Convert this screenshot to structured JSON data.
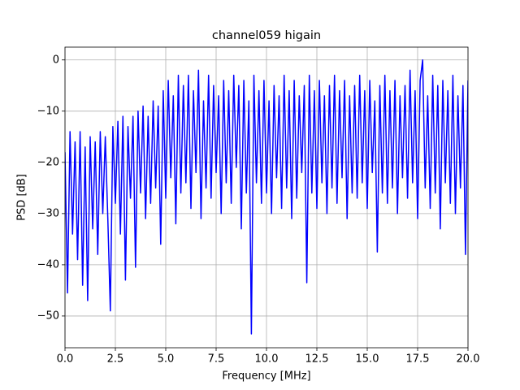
{
  "chart_data": {
    "type": "line",
    "title": "channel059 higain",
    "xlabel": "Frequency [MHz]",
    "ylabel": "PSD [dB]",
    "x": [
      0,
      0.125,
      0.25,
      0.375,
      0.5,
      0.625,
      0.75,
      0.875,
      1,
      1.125,
      1.25,
      1.375,
      1.5,
      1.625,
      1.75,
      1.875,
      2,
      2.125,
      2.25,
      2.375,
      2.5,
      2.625,
      2.75,
      2.875,
      3,
      3.125,
      3.25,
      3.375,
      3.5,
      3.625,
      3.75,
      3.875,
      4,
      4.125,
      4.25,
      4.375,
      4.5,
      4.625,
      4.75,
      4.875,
      5,
      5.125,
      5.25,
      5.375,
      5.5,
      5.625,
      5.75,
      5.875,
      6,
      6.125,
      6.25,
      6.375,
      6.5,
      6.625,
      6.75,
      6.875,
      7,
      7.125,
      7.25,
      7.375,
      7.5,
      7.625,
      7.75,
      7.875,
      8,
      8.125,
      8.25,
      8.375,
      8.5,
      8.625,
      8.75,
      8.875,
      9,
      9.125,
      9.25,
      9.375,
      9.5,
      9.625,
      9.75,
      9.875,
      10,
      10.125,
      10.25,
      10.375,
      10.5,
      10.625,
      10.75,
      10.875,
      11,
      11.125,
      11.25,
      11.375,
      11.5,
      11.625,
      11.75,
      11.875,
      12,
      12.125,
      12.25,
      12.375,
      12.5,
      12.625,
      12.75,
      12.875,
      13,
      13.125,
      13.25,
      13.375,
      13.5,
      13.625,
      13.75,
      13.875,
      14,
      14.125,
      14.25,
      14.375,
      14.5,
      14.625,
      14.75,
      14.875,
      15,
      15.125,
      15.25,
      15.375,
      15.5,
      15.625,
      15.75,
      15.875,
      16,
      16.125,
      16.25,
      16.375,
      16.5,
      16.625,
      16.75,
      16.875,
      17,
      17.125,
      17.25,
      17.375,
      17.5,
      17.625,
      17.75,
      17.875,
      18,
      18.125,
      18.25,
      18.375,
      18.5,
      18.625,
      18.75,
      18.875,
      19,
      19.125,
      19.25,
      19.375,
      19.5,
      19.625,
      19.75,
      19.875,
      20
    ],
    "values": [
      -18,
      -45.5,
      -14,
      -34,
      -16,
      -39,
      -14,
      -44,
      -17,
      -47,
      -15,
      -33,
      -16,
      -38,
      -14,
      -30,
      -15,
      -31,
      -49,
      -13,
      -28,
      -12,
      -34,
      -11,
      -43,
      -13,
      -27,
      -11,
      -40.5,
      -10,
      -26,
      -9,
      -31,
      -11,
      -28,
      -8,
      -25,
      -9,
      -36,
      -6,
      -27,
      -4,
      -23,
      -7,
      -32,
      -3,
      -26,
      -5,
      -24,
      -3,
      -29,
      -6,
      -22,
      -2,
      -31,
      -8,
      -25,
      -3,
      -27,
      -5,
      -22,
      -7,
      -30,
      -4,
      -24,
      -6,
      -28,
      -3,
      -21,
      -5,
      -33,
      -4,
      -26,
      -8,
      -53.5,
      -3,
      -24,
      -6,
      -28,
      -4,
      -26,
      -8,
      -30,
      -5,
      -23,
      -7,
      -29,
      -3,
      -25,
      -6,
      -31,
      -4,
      -27,
      -7,
      -22,
      -5,
      -43.5,
      -3,
      -26,
      -6,
      -29,
      -4,
      -24,
      -7,
      -30,
      -5,
      -25,
      -3,
      -28,
      -6,
      -23,
      -4,
      -31,
      -7,
      -26,
      -5,
      -27,
      -3,
      -24,
      -6,
      -29,
      -4,
      -22,
      -8,
      -37.5,
      -5,
      -26,
      -3,
      -28,
      -6,
      -25,
      -4,
      -30,
      -7,
      -23,
      -5,
      -27,
      -2,
      -24,
      -6,
      -31,
      -4,
      0,
      -25,
      -7,
      -29,
      -3,
      -26,
      -5,
      -33,
      -4,
      -24,
      -6,
      -28,
      -3,
      -30,
      -7,
      -25,
      -5,
      -38,
      -4
    ],
    "color": "#0000ff",
    "xlim": [
      0,
      20
    ],
    "ylim": [
      -56.2,
      2.5
    ],
    "xticks": [
      {
        "value": 0,
        "label": "0.0"
      },
      2.5,
      {
        "value": 5,
        "label": "5.0"
      },
      7.5,
      {
        "value": 10,
        "label": "10.0"
      },
      12.5,
      {
        "value": 15,
        "label": "15.0"
      },
      17.5,
      {
        "value": 20,
        "label": "20.0"
      }
    ],
    "yticks": [
      {
        "value": -50,
        "label": "−50"
      },
      {
        "value": -40,
        "label": "−40"
      },
      {
        "value": -30,
        "label": "−30"
      },
      {
        "value": -20,
        "label": "−20"
      },
      {
        "value": -10,
        "label": "−10"
      },
      0
    ],
    "grid": true
  }
}
